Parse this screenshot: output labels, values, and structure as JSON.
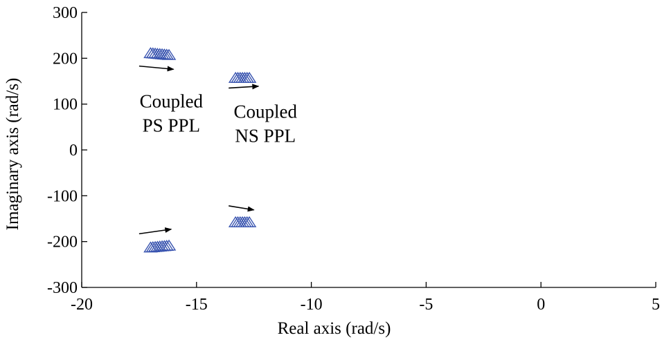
{
  "chart_data": {
    "type": "scatter",
    "xlabel": "Real axis (rad/s)",
    "ylabel": "Imaginary axis (rad/s)",
    "xlim": [
      -20,
      5
    ],
    "ylim": [
      -300,
      300
    ],
    "x_ticks": [
      -20,
      -15,
      -10,
      -5,
      0,
      5
    ],
    "y_ticks": [
      -300,
      -200,
      -100,
      0,
      100,
      200,
      300
    ],
    "x_tick_labels": [
      "-20",
      "-15",
      "-10",
      "-5",
      "0",
      "5"
    ],
    "y_tick_labels": [
      "-300",
      "-200",
      "-100",
      "0",
      "100",
      "200",
      "300"
    ],
    "marker": "triangle",
    "marker_color": "#3a55b0",
    "grid": false,
    "series": [
      {
        "points": [
          {
            "x": -17.0,
            "y": 212
          },
          {
            "x": -16.9,
            "y": 211.5
          },
          {
            "x": -16.8,
            "y": 211
          },
          {
            "x": -16.7,
            "y": 210.5
          },
          {
            "x": -16.6,
            "y": 210
          },
          {
            "x": -16.5,
            "y": 209.5
          },
          {
            "x": -16.4,
            "y": 209
          },
          {
            "x": -16.3,
            "y": 208.5
          },
          {
            "x": -16.2,
            "y": 208
          },
          {
            "x": -17.0,
            "y": -212
          },
          {
            "x": -16.9,
            "y": -211.5
          },
          {
            "x": -16.8,
            "y": -211
          },
          {
            "x": -16.7,
            "y": -210.5
          },
          {
            "x": -16.6,
            "y": -210
          },
          {
            "x": -16.5,
            "y": -209.5
          },
          {
            "x": -16.4,
            "y": -209
          },
          {
            "x": -16.3,
            "y": -208.5
          },
          {
            "x": -16.2,
            "y": -208
          }
        ]
      },
      {
        "points": [
          {
            "x": -13.3,
            "y": 158
          },
          {
            "x": -13.2,
            "y": 158
          },
          {
            "x": -13.1,
            "y": 158
          },
          {
            "x": -13.0,
            "y": 158
          },
          {
            "x": -12.9,
            "y": 158
          },
          {
            "x": -12.8,
            "y": 158
          },
          {
            "x": -12.7,
            "y": 158
          },
          {
            "x": -13.3,
            "y": -157
          },
          {
            "x": -13.2,
            "y": -157
          },
          {
            "x": -13.1,
            "y": -157
          },
          {
            "x": -13.0,
            "y": -157
          },
          {
            "x": -12.9,
            "y": -157
          },
          {
            "x": -12.8,
            "y": -157
          },
          {
            "x": -12.7,
            "y": -157
          }
        ]
      }
    ],
    "annotations": [
      {
        "lines": [
          "Coupled",
          "PS PPL"
        ],
        "x": -16.1,
        "y": 93
      },
      {
        "lines": [
          "Coupled",
          "NS PPL"
        ],
        "x": -12.0,
        "y": 70
      }
    ],
    "arrows": [
      {
        "from": [
          -17.5,
          183
        ],
        "to": [
          -16.0,
          176
        ]
      },
      {
        "from": [
          -13.6,
          135
        ],
        "to": [
          -12.3,
          139
        ]
      },
      {
        "from": [
          -17.5,
          -183
        ],
        "to": [
          -16.1,
          -173
        ]
      },
      {
        "from": [
          -13.6,
          -122
        ],
        "to": [
          -12.5,
          -131
        ]
      }
    ]
  }
}
